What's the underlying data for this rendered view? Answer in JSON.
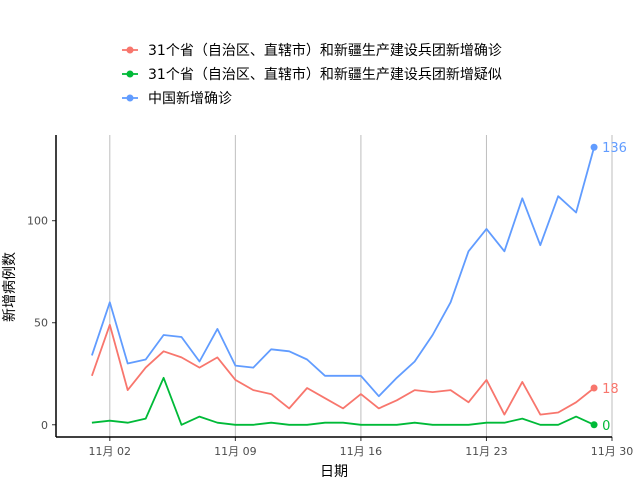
{
  "chart_data": {
    "type": "line",
    "xlabel": "日期",
    "ylabel": "新增病例数",
    "x": [
      "2020-11-01",
      "2020-11-02",
      "2020-11-03",
      "2020-11-04",
      "2020-11-05",
      "2020-11-06",
      "2020-11-07",
      "2020-11-08",
      "2020-11-09",
      "2020-11-10",
      "2020-11-11",
      "2020-11-12",
      "2020-11-13",
      "2020-11-14",
      "2020-11-15",
      "2020-11-16",
      "2020-11-17",
      "2020-11-18",
      "2020-11-19",
      "2020-11-20",
      "2020-11-21",
      "2020-11-22",
      "2020-11-23",
      "2020-11-24",
      "2020-11-25",
      "2020-11-26",
      "2020-11-27",
      "2020-11-28",
      "2020-11-29"
    ],
    "xticks": [
      "11月 02",
      "11月 09",
      "11月 16",
      "11月 23",
      "11月 30"
    ],
    "xtick_dates": [
      "2020-11-02",
      "2020-11-09",
      "2020-11-16",
      "2020-11-23",
      "2020-11-30"
    ],
    "xlim": [
      "2020-10-30",
      "2020-11-30"
    ],
    "yticks": [
      0,
      50,
      100
    ],
    "ylim": [
      -6,
      142
    ],
    "grid": "vertical",
    "legend_position": "top",
    "series": [
      {
        "name": "31个省（自治区、直辖市）和新疆生产建设兵团新增确诊",
        "color": "#F8766D",
        "values": [
          24,
          49,
          17,
          28,
          36,
          33,
          28,
          33,
          22,
          17,
          15,
          8,
          18,
          13,
          8,
          15,
          8,
          12,
          17,
          16,
          17,
          11,
          22,
          5,
          21,
          5,
          6,
          11,
          18
        ],
        "end_label": "18"
      },
      {
        "name": "31个省（自治区、直辖市）和新疆生产建设兵团新增疑似",
        "color": "#00BA38",
        "values": [
          1,
          2,
          1,
          3,
          23,
          0,
          4,
          1,
          0,
          0,
          1,
          0,
          0,
          1,
          1,
          0,
          0,
          0,
          1,
          0,
          0,
          0,
          1,
          1,
          3,
          0,
          0,
          4,
          0
        ],
        "end_label": "0"
      },
      {
        "name": "中国新增确诊",
        "color": "#619CFF",
        "values": [
          34,
          60,
          30,
          32,
          44,
          43,
          31,
          47,
          29,
          28,
          37,
          36,
          32,
          24,
          24,
          24,
          14,
          23,
          31,
          44,
          60,
          85,
          96,
          85,
          111,
          88,
          112,
          104,
          136
        ],
        "end_label": "136"
      }
    ]
  }
}
